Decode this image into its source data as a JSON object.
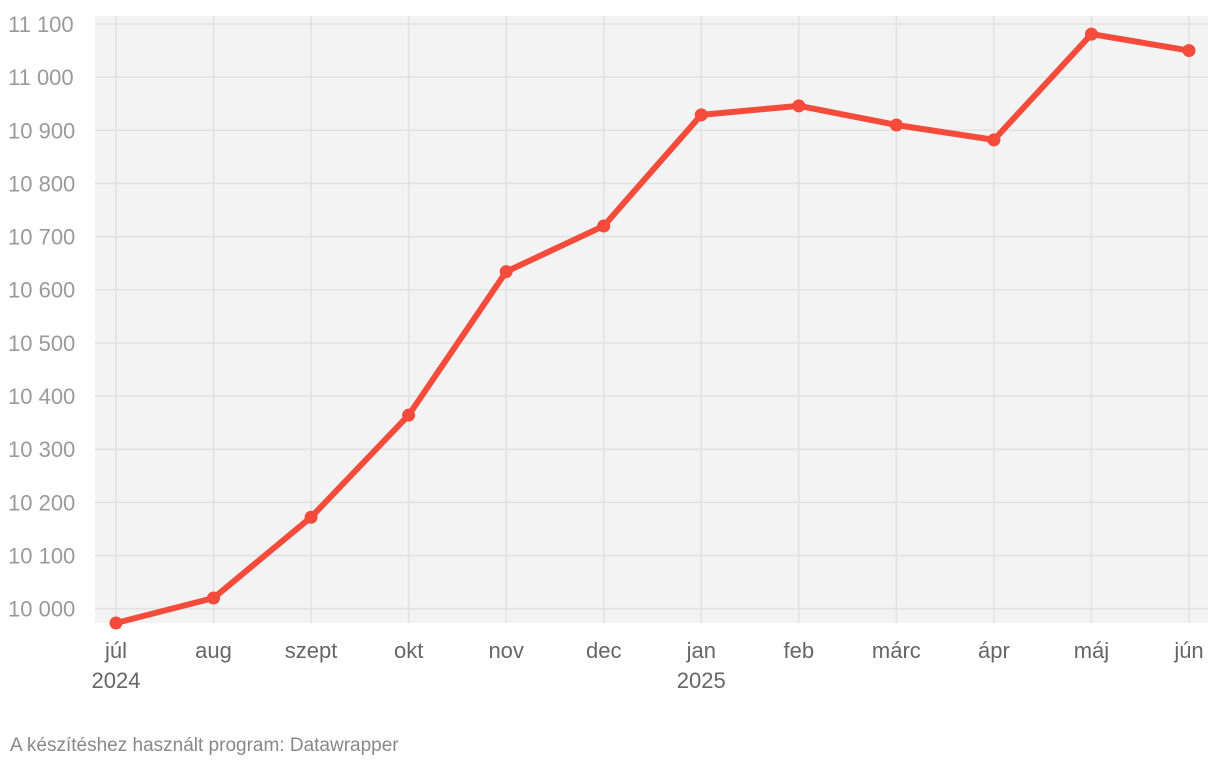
{
  "chart_data": {
    "type": "line",
    "title": "",
    "xlabel": "",
    "ylabel": "",
    "x": [
      "2024-07",
      "2024-08",
      "2024-09",
      "2024-10",
      "2024-11",
      "2024-12",
      "2025-01",
      "2025-02",
      "2025-03",
      "2025-04",
      "2025-05",
      "2025-06"
    ],
    "x_tick_labels": [
      "júl",
      "aug",
      "szept",
      "okt",
      "nov",
      "dec",
      "jan",
      "feb",
      "márc",
      "ápr",
      "máj",
      "jún"
    ],
    "x_year_labels": [
      {
        "month": "2024-07",
        "label": "2024"
      },
      {
        "month": "2025-01",
        "label": "2025"
      }
    ],
    "series": [
      {
        "values": [
          9973,
          10020,
          10172,
          10364,
          10634,
          10720,
          10929,
          10946,
          10910,
          10882,
          11081,
          11050
        ],
        "color": "#f44b3b",
        "markers": true
      }
    ],
    "y_ticks": [
      10000,
      10100,
      10200,
      10300,
      10400,
      10500,
      10600,
      10700,
      10800,
      10900,
      11000,
      11100
    ],
    "y_tick_labels": [
      "10 000",
      "10 100",
      "10 200",
      "10 300",
      "10 400",
      "10 500",
      "10 600",
      "10 700",
      "10 800",
      "10 900",
      "11 000",
      "11 100"
    ],
    "ylim": [
      9973,
      11100
    ],
    "grid": true,
    "plot_background": "#f3f3f3",
    "grid_color": "#e2e2e2"
  },
  "footer": {
    "credit": "A készítéshez használt program: Datawrapper"
  }
}
